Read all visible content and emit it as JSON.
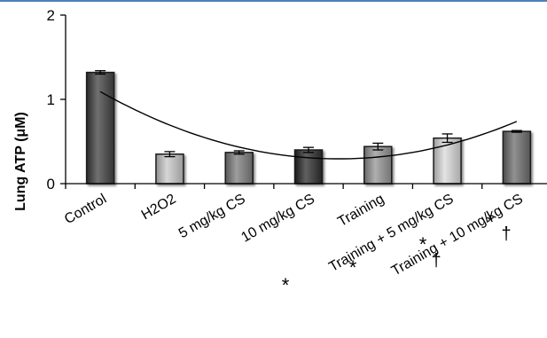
{
  "chart_data": {
    "type": "bar",
    "title": "",
    "xlabel": "",
    "ylabel": "Lung ATP (μM)",
    "ylim": [
      0,
      2
    ],
    "yticks": [
      0,
      1,
      2
    ],
    "grid": false,
    "categories": [
      "Control",
      "H2O2",
      "5 mg/kg CS",
      "10 mg/kg CS",
      "Training",
      "Training + 5 mg/kg CS",
      "Training + 10 mg/kg CS"
    ],
    "values": [
      1.32,
      0.35,
      0.37,
      0.4,
      0.44,
      0.54,
      0.62
    ],
    "errors": [
      0.02,
      0.03,
      0.02,
      0.03,
      0.04,
      0.05,
      0.01
    ],
    "bar_colors": [
      "#4d4d4d",
      "#b3b3b3",
      "#7a7a7a",
      "#3d3d3d",
      "#8c8c8c",
      "#c0c0c0",
      "#6e6e6e"
    ],
    "trendline": {
      "type": "polynomial",
      "order": 2
    },
    "annotations": [
      {
        "text": "*",
        "category_index": 3
      },
      {
        "text": "*",
        "category_index": 5
      },
      {
        "text": "*",
        "category_index": 6
      },
      {
        "text": "†",
        "category_index": 6
      },
      {
        "text": "*",
        "category_index": 6
      },
      {
        "text": "†",
        "category_index": 6
      }
    ]
  }
}
